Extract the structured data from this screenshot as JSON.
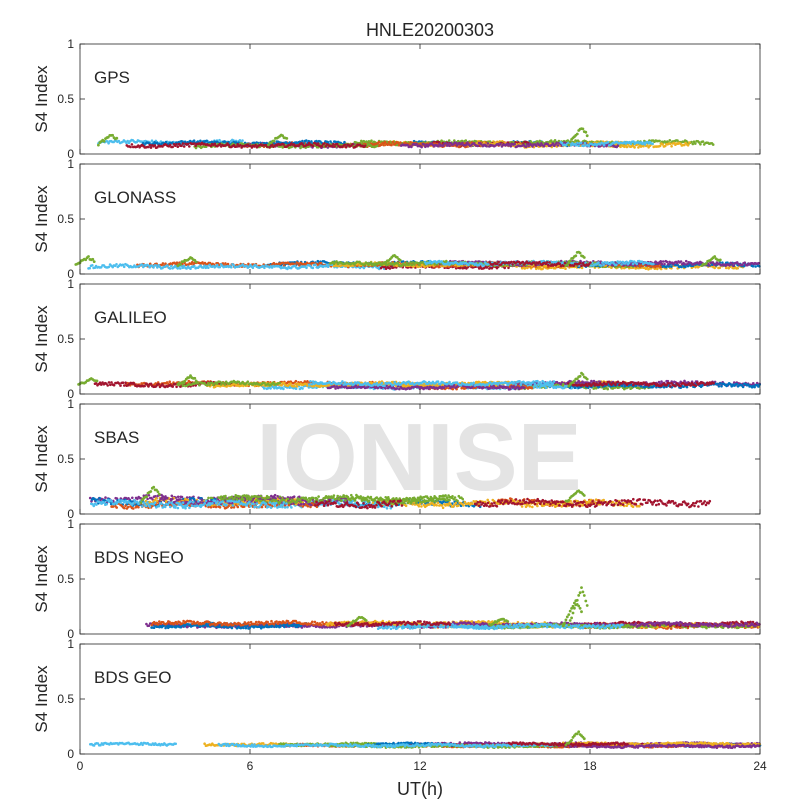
{
  "figure": {
    "title": "HNLE20200303",
    "watermark": "IONISE"
  },
  "chart_data": [
    {
      "type": "scatter",
      "panel_label": "GPS",
      "ylabel": "S4 Index",
      "xlabel": "",
      "xlim": [
        0,
        24
      ],
      "ylim": [
        0,
        1
      ],
      "xticks": [
        "0",
        "6",
        "12",
        "18",
        "24"
      ],
      "yticks": [
        "0",
        "0.5",
        "1"
      ],
      "show_xtick_labels": false,
      "base_level": 0.09,
      "spread": 0.03,
      "spikes": [
        {
          "x": 17.6,
          "y": 0.24
        },
        {
          "x": 1.0,
          "y": 0.17
        },
        {
          "x": 7.0,
          "y": 0.17
        }
      ]
    },
    {
      "type": "scatter",
      "panel_label": "GLONASS",
      "ylabel": "S4 Index",
      "xlabel": "",
      "xlim": [
        0,
        24
      ],
      "ylim": [
        0,
        1
      ],
      "xticks": [
        "0",
        "6",
        "12",
        "18",
        "24"
      ],
      "yticks": [
        "0",
        "0.5",
        "1"
      ],
      "show_xtick_labels": false,
      "base_level": 0.08,
      "spread": 0.03,
      "spikes": [
        {
          "x": 0.2,
          "y": 0.15
        },
        {
          "x": 3.8,
          "y": 0.15
        },
        {
          "x": 11.0,
          "y": 0.17
        },
        {
          "x": 17.5,
          "y": 0.2
        },
        {
          "x": 22.3,
          "y": 0.15
        }
      ]
    },
    {
      "type": "scatter",
      "panel_label": "GALILEO",
      "ylabel": "S4 Index",
      "xlabel": "",
      "xlim": [
        0,
        24
      ],
      "ylim": [
        0,
        1
      ],
      "xticks": [
        "0",
        "6",
        "12",
        "18",
        "24"
      ],
      "yticks": [
        "0",
        "0.5",
        "1"
      ],
      "show_xtick_labels": false,
      "base_level": 0.08,
      "spread": 0.03,
      "spikes": [
        {
          "x": 3.8,
          "y": 0.16
        },
        {
          "x": 17.6,
          "y": 0.18
        },
        {
          "x": 0.3,
          "y": 0.14
        }
      ]
    },
    {
      "type": "scatter",
      "panel_label": "SBAS",
      "ylabel": "S4 Index",
      "xlabel": "",
      "xlim": [
        0,
        24
      ],
      "ylim": [
        0,
        1
      ],
      "xticks": [
        "0",
        "6",
        "12",
        "18",
        "24"
      ],
      "yticks": [
        "0",
        "0.5",
        "1"
      ],
      "show_xtick_labels": false,
      "base_level": 0.11,
      "spread": 0.05,
      "spikes": [
        {
          "x": 2.5,
          "y": 0.24
        },
        {
          "x": 17.5,
          "y": 0.21
        }
      ]
    },
    {
      "type": "scatter",
      "panel_label": "BDS NGEO",
      "ylabel": "S4 Index",
      "xlabel": "",
      "xlim": [
        0,
        24
      ],
      "ylim": [
        0,
        1
      ],
      "xticks": [
        "0",
        "6",
        "12",
        "18",
        "24"
      ],
      "yticks": [
        "0",
        "0.5",
        "1"
      ],
      "show_xtick_labels": false,
      "base_level": 0.08,
      "spread": 0.03,
      "spikes": [
        {
          "x": 17.6,
          "y": 0.42
        },
        {
          "x": 17.4,
          "y": 0.3
        },
        {
          "x": 9.8,
          "y": 0.15
        },
        {
          "x": 14.8,
          "y": 0.14
        }
      ]
    },
    {
      "type": "scatter",
      "panel_label": "BDS GEO",
      "ylabel": "S4 Index",
      "xlabel": "UT(h)",
      "xlim": [
        0,
        24
      ],
      "ylim": [
        0,
        1
      ],
      "xticks": [
        "0",
        "6",
        "12",
        "18",
        "24"
      ],
      "yticks": [
        "0",
        "0.5",
        "1"
      ],
      "show_xtick_labels": true,
      "base_level": 0.08,
      "spread": 0.02,
      "spikes": [
        {
          "x": 17.5,
          "y": 0.2
        }
      ]
    }
  ],
  "colors": {
    "series": [
      "#0072BD",
      "#D95319",
      "#EDB120",
      "#7E2F8E",
      "#77AC30",
      "#4DBEEE",
      "#A2142F"
    ],
    "axis": "#262626",
    "watermark": "#d9d9d9"
  }
}
